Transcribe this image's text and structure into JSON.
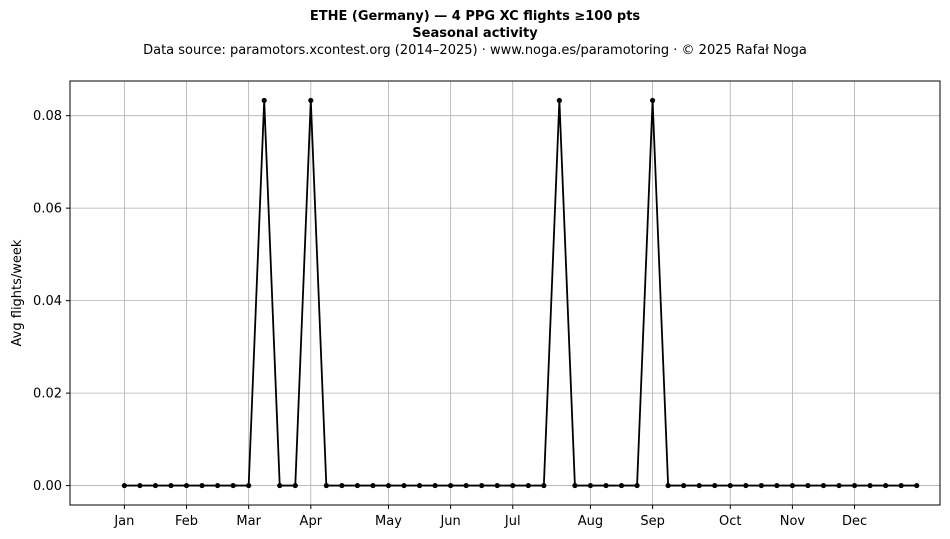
{
  "header": {
    "title_line1": "ETHE (Germany)  —  4 PPG XC flights ≥100 pts",
    "title_line2": "Seasonal activity",
    "subtitle": "Data source: paramotors.xcontest.org (2014–2025)  ·  www.noga.es/paramotoring  ·  © 2025 Rafał Noga"
  },
  "chart_data": {
    "type": "line",
    "title": "ETHE (Germany)  —  4 PPG XC flights ≥100 pts",
    "subtitle": "Seasonal activity",
    "xlabel": "",
    "ylabel": "Avg flights/week",
    "x_unit": "week of year",
    "xlim": [
      -2.5,
      53.5
    ],
    "ylim": [
      -0.0042,
      0.0875
    ],
    "x_ticks": [
      {
        "label": "Jan",
        "week": 1
      },
      {
        "label": "Feb",
        "week": 5
      },
      {
        "label": "Mar",
        "week": 9
      },
      {
        "label": "Apr",
        "week": 13
      },
      {
        "label": "May",
        "week": 18
      },
      {
        "label": "Jun",
        "week": 22
      },
      {
        "label": "Jul",
        "week": 26
      },
      {
        "label": "Aug",
        "week": 31
      },
      {
        "label": "Sep",
        "week": 35
      },
      {
        "label": "Oct",
        "week": 40
      },
      {
        "label": "Nov",
        "week": 44
      },
      {
        "label": "Dec",
        "week": 48
      }
    ],
    "y_ticks": [
      0.0,
      0.02,
      0.04,
      0.06,
      0.08
    ],
    "y_tick_labels": [
      "0.00",
      "0.02",
      "0.04",
      "0.06",
      "0.08"
    ],
    "grid": true,
    "line_color": "#000000",
    "grid_color": "#b0b0b0",
    "series": [
      {
        "x": [
          1,
          2,
          3,
          4,
          5,
          6,
          7,
          8,
          9,
          10,
          11,
          12,
          13,
          14,
          15,
          16,
          17,
          18,
          19,
          20,
          21,
          22,
          23,
          24,
          25,
          26,
          27,
          28,
          29,
          30,
          31,
          32,
          33,
          34,
          35,
          36,
          37,
          38,
          39,
          40,
          41,
          42,
          43,
          44,
          45,
          46,
          47,
          48,
          49,
          50,
          51,
          52
        ],
        "values": [
          0,
          0,
          0,
          0,
          0,
          0,
          0,
          0,
          0,
          0.0833,
          0,
          0,
          0.0833,
          0,
          0,
          0,
          0,
          0,
          0,
          0,
          0,
          0,
          0,
          0,
          0,
          0,
          0,
          0,
          0.0833,
          0,
          0,
          0,
          0,
          0,
          0.0833,
          0,
          0,
          0,
          0,
          0,
          0,
          0,
          0,
          0,
          0,
          0,
          0,
          0,
          0,
          0,
          0,
          0
        ]
      }
    ]
  }
}
